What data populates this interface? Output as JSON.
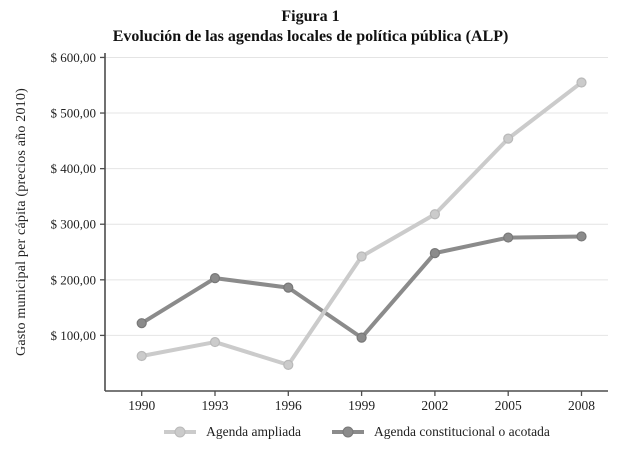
{
  "title": "Figura 1",
  "subtitle": "Evolución de las agendas locales de política pública (ALP)",
  "chart_data": {
    "type": "line",
    "x": [
      1990,
      1993,
      1996,
      1999,
      2002,
      2005,
      2008
    ],
    "series": [
      {
        "name": "Agenda ampliada",
        "color": "#cbcbcb",
        "marker_stroke": "#b9b9b9",
        "values": [
          63,
          88,
          47,
          242,
          318,
          454,
          555
        ]
      },
      {
        "name": "Agenda constitucional o acotada",
        "color": "#8b8b8b",
        "marker_stroke": "#787878",
        "values": [
          122,
          203,
          186,
          96,
          248,
          276,
          278
        ]
      }
    ],
    "xlabel": "",
    "ylabel": "Gasto municipal per cápita (precios año 2010)",
    "ylim": [
      0,
      608
    ],
    "yticks": [
      100,
      200,
      300,
      400,
      500,
      600
    ],
    "ytick_labels": [
      "$ 100,00",
      "$ 200,00",
      "$ 300,00",
      "$ 400,00",
      "$ 500,00",
      "$ 600,00"
    ],
    "grid": true,
    "legend_position": "bottom"
  },
  "colors": {
    "background": "#ffffff",
    "axis": "#4d4d4d",
    "grid": "#e4e4e4",
    "tick_text": "#222222",
    "title_text": "#111111"
  }
}
